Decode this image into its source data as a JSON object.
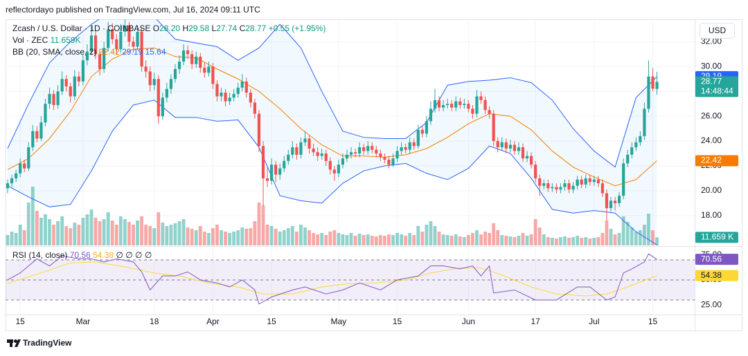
{
  "header": {
    "publisher": "reflectordayo published on TradingView.com, Jul 16, 2024 09:11 UTC",
    "brand": "TradingView",
    "currency": "USD"
  },
  "chart_data": {
    "type": "candlestick",
    "title": "Zcash / U.S. Dollar · 1D · COINBASE",
    "ohlc_legend": [
      [
        "O",
        "28.20"
      ],
      [
        "H",
        "29.58"
      ],
      [
        "L",
        "27.74"
      ],
      [
        "C",
        "28.77"
      ]
    ],
    "change": "+0.55 (+1.95%)",
    "last_price_tag": [
      "28.77",
      "14:48:44"
    ],
    "up_color": "#26a69a",
    "down_color": "#ef5350",
    "ylim": [
      15.6,
      33.8
    ],
    "yticks": [
      {
        "value": 18,
        "label": "18.00"
      },
      {
        "value": 20,
        "label": "20.00"
      },
      {
        "value": 22,
        "label": "22.00"
      },
      {
        "value": 24,
        "label": "24.00"
      },
      {
        "value": 26,
        "label": "26.00"
      },
      {
        "value": 28,
        "label": "28.00"
      },
      {
        "value": 30,
        "label": "30.00"
      },
      {
        "value": 32,
        "label": "32.00"
      }
    ],
    "grid": true,
    "xlim": [
      -0.5,
      164
    ],
    "xticks": [
      {
        "value": 3,
        "label": "15"
      },
      {
        "value": 18,
        "label": "Mar"
      },
      {
        "value": 35,
        "label": "18"
      },
      {
        "value": 49,
        "label": "Apr"
      },
      {
        "value": 63,
        "label": "15"
      },
      {
        "value": 79,
        "label": "May"
      },
      {
        "value": 93,
        "label": "15"
      },
      {
        "value": 110,
        "label": "Jun"
      },
      {
        "value": 126,
        "label": "17"
      },
      {
        "value": 140,
        "label": "Jul"
      },
      {
        "value": 154,
        "label": "15"
      }
    ],
    "candles": [
      [
        20.2,
        20.9,
        19.8,
        20.6
      ],
      [
        20.6,
        21.3,
        20.3,
        21.0
      ],
      [
        21.0,
        21.7,
        20.7,
        21.4
      ],
      [
        21.4,
        22.6,
        21.1,
        22.2
      ],
      [
        22.2,
        22.5,
        21.5,
        21.8
      ],
      [
        21.8,
        23.9,
        21.6,
        23.5
      ],
      [
        23.5,
        25.3,
        23.2,
        24.8
      ],
      [
        24.8,
        25.2,
        23.9,
        24.2
      ],
      [
        24.2,
        26.0,
        24.0,
        25.5
      ],
      [
        25.5,
        27.4,
        25.2,
        27.0
      ],
      [
        27.0,
        28.3,
        26.6,
        27.8
      ],
      [
        27.8,
        28.1,
        26.5,
        26.9
      ],
      [
        26.9,
        28.5,
        26.6,
        28.0
      ],
      [
        28.0,
        29.6,
        27.7,
        29.0
      ],
      [
        29.0,
        29.3,
        28.0,
        28.4
      ],
      [
        28.4,
        28.7,
        27.1,
        27.6
      ],
      [
        27.6,
        29.7,
        27.3,
        29.2
      ],
      [
        29.2,
        29.6,
        28.4,
        28.8
      ],
      [
        28.8,
        31.0,
        28.5,
        30.5
      ],
      [
        30.5,
        31.8,
        30.1,
        31.2
      ],
      [
        31.2,
        33.2,
        30.9,
        32.5
      ],
      [
        32.5,
        32.9,
        30.6,
        31.0
      ],
      [
        31.0,
        31.4,
        29.3,
        29.8
      ],
      [
        29.8,
        32.0,
        29.5,
        31.5
      ],
      [
        31.5,
        33.6,
        31.2,
        33.0
      ],
      [
        33.0,
        33.5,
        31.8,
        32.2
      ],
      [
        32.2,
        32.6,
        31.0,
        31.4
      ],
      [
        31.4,
        33.4,
        31.1,
        32.8
      ],
      [
        32.8,
        33.8,
        32.4,
        33.3
      ],
      [
        33.3,
        33.6,
        31.6,
        32.0
      ],
      [
        32.0,
        32.4,
        31.1,
        31.6
      ],
      [
        31.6,
        33.3,
        31.3,
        32.8
      ],
      [
        32.8,
        33.1,
        29.6,
        30.0
      ],
      [
        30.0,
        30.5,
        29.1,
        29.6
      ],
      [
        29.6,
        30.0,
        28.0,
        28.5
      ],
      [
        28.5,
        29.5,
        28.1,
        29.0
      ],
      [
        29.0,
        29.3,
        25.4,
        26.0
      ],
      [
        26.0,
        27.9,
        25.7,
        27.5
      ],
      [
        27.5,
        28.7,
        27.1,
        28.2
      ],
      [
        28.2,
        29.4,
        27.8,
        29.0
      ],
      [
        29.0,
        30.2,
        28.7,
        29.8
      ],
      [
        29.8,
        30.9,
        29.4,
        30.4
      ],
      [
        30.4,
        31.8,
        30.1,
        31.3
      ],
      [
        31.3,
        31.7,
        30.6,
        31.0
      ],
      [
        31.0,
        31.3,
        29.8,
        30.2
      ],
      [
        30.2,
        31.2,
        29.9,
        30.8
      ],
      [
        30.8,
        31.1,
        29.5,
        29.9
      ],
      [
        29.9,
        30.3,
        29.1,
        29.5
      ],
      [
        29.5,
        30.4,
        29.2,
        30.0
      ],
      [
        30.0,
        30.3,
        28.2,
        28.6
      ],
      [
        28.6,
        28.9,
        27.2,
        27.6
      ],
      [
        27.6,
        28.3,
        27.2,
        27.9
      ],
      [
        27.9,
        28.2,
        26.8,
        27.2
      ],
      [
        27.2,
        27.9,
        26.9,
        27.5
      ],
      [
        27.5,
        28.2,
        27.2,
        27.8
      ],
      [
        27.8,
        28.7,
        27.5,
        28.3
      ],
      [
        28.3,
        29.4,
        28.0,
        28.8
      ],
      [
        28.8,
        29.1,
        27.5,
        27.9
      ],
      [
        27.9,
        28.2,
        26.7,
        27.1
      ],
      [
        27.1,
        27.4,
        25.8,
        26.2
      ],
      [
        26.2,
        26.5,
        23.1,
        23.6
      ],
      [
        23.6,
        24.0,
        18.8,
        21.0
      ],
      [
        21.0,
        21.9,
        20.3,
        20.8
      ],
      [
        20.8,
        22.6,
        20.5,
        22.1
      ],
      [
        22.1,
        22.4,
        20.7,
        21.3
      ],
      [
        21.3,
        22.2,
        20.9,
        21.8
      ],
      [
        21.8,
        22.8,
        21.5,
        22.4
      ],
      [
        22.4,
        23.3,
        22.1,
        22.9
      ],
      [
        22.9,
        24.0,
        22.6,
        23.5
      ],
      [
        23.5,
        23.8,
        22.5,
        22.9
      ],
      [
        22.9,
        24.3,
        22.6,
        23.9
      ],
      [
        23.9,
        24.8,
        23.6,
        24.2
      ],
      [
        24.2,
        24.5,
        23.0,
        23.4
      ],
      [
        23.4,
        23.8,
        22.8,
        23.1
      ],
      [
        23.1,
        23.5,
        22.4,
        22.8
      ],
      [
        22.8,
        23.4,
        22.5,
        23.0
      ],
      [
        23.0,
        23.3,
        22.0,
        22.4
      ],
      [
        22.4,
        22.7,
        21.3,
        21.7
      ],
      [
        21.7,
        22.0,
        20.8,
        21.4
      ],
      [
        21.4,
        22.5,
        21.1,
        22.1
      ],
      [
        22.1,
        23.0,
        21.8,
        22.6
      ],
      [
        22.6,
        23.3,
        22.3,
        22.9
      ],
      [
        22.9,
        23.5,
        22.6,
        23.1
      ],
      [
        23.1,
        23.4,
        22.7,
        23.0
      ],
      [
        23.0,
        23.9,
        22.7,
        23.5
      ],
      [
        23.5,
        23.8,
        22.9,
        23.2
      ],
      [
        23.2,
        24.0,
        22.9,
        23.6
      ],
      [
        23.6,
        23.9,
        23.0,
        23.3
      ],
      [
        23.3,
        23.6,
        22.7,
        23.0
      ],
      [
        23.0,
        23.3,
        22.4,
        22.7
      ],
      [
        22.7,
        23.0,
        22.2,
        22.5
      ],
      [
        22.5,
        22.8,
        21.8,
        22.1
      ],
      [
        22.1,
        23.0,
        21.9,
        22.6
      ],
      [
        22.6,
        23.6,
        22.3,
        23.2
      ],
      [
        23.2,
        23.9,
        22.9,
        23.5
      ],
      [
        23.5,
        23.8,
        23.0,
        23.3
      ],
      [
        23.3,
        24.3,
        23.0,
        23.9
      ],
      [
        23.9,
        24.2,
        23.3,
        23.6
      ],
      [
        23.6,
        25.3,
        23.4,
        24.9
      ],
      [
        24.9,
        25.2,
        24.3,
        24.6
      ],
      [
        24.6,
        26.0,
        24.3,
        25.6
      ],
      [
        25.6,
        27.2,
        25.3,
        26.6
      ],
      [
        26.6,
        28.2,
        26.3,
        27.3
      ],
      [
        27.3,
        27.6,
        26.4,
        26.7
      ],
      [
        26.7,
        27.3,
        26.4,
        26.9
      ],
      [
        26.9,
        27.4,
        26.6,
        27.0
      ],
      [
        27.0,
        27.3,
        26.4,
        26.7
      ],
      [
        26.7,
        27.6,
        26.4,
        27.2
      ],
      [
        27.2,
        27.5,
        26.6,
        26.9
      ],
      [
        26.9,
        27.4,
        26.6,
        27.0
      ],
      [
        27.0,
        27.3,
        26.3,
        26.6
      ],
      [
        26.6,
        26.9,
        25.8,
        26.2
      ],
      [
        26.2,
        28.1,
        25.9,
        27.6
      ],
      [
        27.6,
        28.0,
        27.0,
        27.3
      ],
      [
        27.3,
        27.6,
        26.2,
        26.5
      ],
      [
        26.5,
        26.8,
        25.8,
        26.2
      ],
      [
        26.2,
        26.5,
        23.6,
        24.0
      ],
      [
        24.0,
        24.3,
        23.1,
        23.5
      ],
      [
        23.5,
        24.3,
        23.2,
        23.9
      ],
      [
        23.9,
        24.2,
        23.0,
        23.4
      ],
      [
        23.4,
        24.1,
        23.1,
        23.7
      ],
      [
        23.7,
        24.0,
        22.9,
        23.2
      ],
      [
        23.2,
        23.9,
        22.9,
        23.5
      ],
      [
        23.5,
        23.8,
        22.3,
        22.6
      ],
      [
        22.6,
        23.2,
        22.3,
        22.8
      ],
      [
        22.8,
        23.1,
        21.8,
        22.1
      ],
      [
        22.1,
        22.4,
        20.7,
        21.0
      ],
      [
        21.0,
        21.3,
        19.6,
        20.4
      ],
      [
        20.4,
        20.9,
        20.1,
        20.6
      ],
      [
        20.6,
        20.9,
        19.9,
        20.2
      ],
      [
        20.2,
        20.6,
        19.9,
        20.3
      ],
      [
        20.3,
        20.6,
        19.8,
        20.1
      ],
      [
        20.1,
        20.6,
        19.8,
        20.3
      ],
      [
        20.3,
        20.9,
        20.0,
        20.6
      ],
      [
        20.6,
        20.9,
        19.8,
        20.1
      ],
      [
        20.1,
        20.7,
        19.8,
        20.4
      ],
      [
        20.4,
        21.2,
        20.1,
        20.9
      ],
      [
        20.9,
        21.2,
        20.2,
        20.5
      ],
      [
        20.5,
        21.3,
        20.2,
        21.0
      ],
      [
        21.0,
        21.3,
        20.4,
        20.7
      ],
      [
        20.7,
        21.2,
        20.4,
        20.9
      ],
      [
        20.9,
        21.2,
        20.3,
        20.6
      ],
      [
        20.6,
        20.9,
        19.5,
        19.8
      ],
      [
        19.8,
        20.1,
        17.6,
        18.6
      ],
      [
        18.6,
        19.5,
        18.3,
        19.2
      ],
      [
        19.2,
        19.5,
        18.4,
        19.0
      ],
      [
        19.0,
        19.9,
        18.7,
        19.6
      ],
      [
        19.6,
        22.6,
        19.3,
        22.2
      ],
      [
        22.2,
        23.3,
        21.9,
        22.9
      ],
      [
        22.9,
        23.9,
        22.6,
        23.5
      ],
      [
        23.5,
        24.3,
        23.2,
        23.9
      ],
      [
        23.9,
        24.8,
        23.6,
        24.4
      ],
      [
        24.4,
        27.1,
        24.1,
        26.6
      ],
      [
        26.6,
        30.5,
        26.3,
        29.2
      ],
      [
        29.2,
        29.9,
        28.0,
        28.22
      ],
      [
        28.2,
        29.58,
        27.74,
        28.77
      ]
    ],
    "volume": {
      "label": "Vol · ZEC",
      "last_label": "11.659K",
      "axis_tag": "11.659 K",
      "vlim": [
        0,
        100
      ],
      "values": [
        15,
        20,
        18,
        30,
        22,
        62,
        85,
        50,
        40,
        45,
        38,
        30,
        35,
        42,
        28,
        25,
        33,
        30,
        40,
        45,
        52,
        40,
        35,
        38,
        48,
        36,
        30,
        42,
        38,
        34,
        30,
        36,
        42,
        30,
        28,
        25,
        48,
        33,
        28,
        30,
        32,
        35,
        38,
        26,
        24,
        22,
        28,
        20,
        18,
        25,
        30,
        22,
        20,
        18,
        20,
        22,
        26,
        24,
        25,
        35,
        62,
        58,
        30,
        28,
        24,
        20,
        22,
        25,
        28,
        20,
        30,
        26,
        22,
        18,
        16,
        18,
        15,
        20,
        22,
        18,
        16,
        15,
        18,
        14,
        17,
        15,
        16,
        14,
        13,
        15,
        14,
        16,
        15,
        18,
        16,
        14,
        18,
        15,
        28,
        20,
        30,
        35,
        28,
        20,
        16,
        15,
        14,
        16,
        13,
        12,
        15,
        18,
        22,
        16,
        20,
        18,
        32,
        22,
        15,
        14,
        13,
        12,
        14,
        18,
        14,
        16,
        38,
        26,
        16,
        12,
        11,
        10,
        12,
        13,
        11,
        12,
        14,
        11,
        12,
        10,
        11,
        12,
        18,
        36,
        24,
        16,
        18,
        42,
        34,
        26,
        20,
        22,
        30,
        46,
        22,
        11.659
      ]
    },
    "bb": {
      "label": "BB (20, SMA, close, 2)",
      "basis_color": "#f57c00",
      "band_color": "#2962ff",
      "fill_color": "#2196f3",
      "last_labels": [
        "22.42",
        "29.19",
        "15.64"
      ],
      "x": [
        0,
        5,
        10,
        15,
        20,
        25,
        30,
        35,
        40,
        45,
        50,
        55,
        60,
        65,
        70,
        75,
        80,
        85,
        90,
        95,
        100,
        105,
        110,
        115,
        120,
        125,
        130,
        135,
        140,
        145,
        150,
        155
      ],
      "upper": [
        23.4,
        27.0,
        30.3,
        32.0,
        33.4,
        34.5,
        35.0,
        34.0,
        32.2,
        31.9,
        31.6,
        30.5,
        31.5,
        33.4,
        31.5,
        28.0,
        24.8,
        24.3,
        24.2,
        24.2,
        25.5,
        28.5,
        28.8,
        28.9,
        29.1,
        28.7,
        27.3,
        25.0,
        23.2,
        21.9,
        27.5,
        29.19
      ],
      "basis": [
        21.7,
        22.6,
        24.2,
        26.4,
        29.2,
        30.6,
        31.4,
        31.5,
        30.8,
        30.7,
        29.8,
        29.0,
        28.0,
        26.6,
        25.0,
        23.7,
        22.8,
        22.8,
        22.7,
        22.9,
        23.4,
        24.3,
        25.4,
        26.2,
        26.0,
        24.9,
        23.2,
        21.9,
        21.1,
        20.4,
        20.9,
        22.42
      ],
      "lower": [
        20.4,
        19.5,
        18.7,
        18.9,
        21.6,
        24.8,
        26.9,
        27.3,
        25.9,
        25.9,
        25.6,
        25.7,
        23.5,
        19.6,
        19.2,
        19.0,
        20.6,
        21.6,
        22.0,
        22.2,
        21.4,
        20.9,
        21.8,
        23.6,
        23.0,
        21.0,
        18.5,
        18.2,
        18.4,
        18.2,
        16.7,
        15.64
      ]
    },
    "rsi": {
      "label": "RSI (14, close)",
      "color": "#7e57c2",
      "ma_color": "#fdd835",
      "last_labels": [
        "70.56",
        "54.38"
      ],
      "extras": [
        "∅",
        "∅",
        "∅",
        "∅"
      ],
      "ylim": [
        15.5,
        82.4
      ],
      "yticks": [
        {
          "value": 25,
          "label": "25.00"
        },
        {
          "value": 50,
          "label": "50.00"
        },
        {
          "value": 75,
          "label": "75.00"
        }
      ],
      "levels": [
        30,
        50,
        70
      ],
      "x": [
        0,
        3,
        7,
        10,
        13,
        17,
        20,
        23,
        26,
        30,
        32,
        34,
        37,
        40,
        43,
        46,
        50,
        53,
        56,
        59,
        60,
        63,
        68,
        71,
        76,
        80,
        84,
        89,
        93,
        98,
        101,
        104,
        108,
        111,
        113,
        115,
        116,
        121,
        126,
        131,
        136,
        139,
        143,
        145,
        147,
        149,
        152,
        153,
        155
      ],
      "values": [
        50,
        57,
        71,
        64,
        74,
        71,
        71,
        68,
        71,
        68,
        58,
        40,
        54,
        54,
        58,
        50,
        47,
        43,
        50,
        40,
        26,
        33,
        40,
        43,
        36,
        40,
        47,
        40,
        50,
        54,
        64,
        64,
        61,
        64,
        54,
        64,
        37,
        40,
        30,
        30,
        43,
        43,
        30,
        33,
        57,
        61,
        68,
        76,
        70.56
      ],
      "ma_x": [
        0,
        8,
        15,
        21,
        28,
        35,
        41,
        48,
        55,
        61,
        68,
        75,
        81,
        88,
        95,
        101,
        108,
        113,
        118,
        125,
        131,
        138,
        143,
        148,
        155
      ],
      "ma": [
        46.6,
        57,
        67,
        68,
        63,
        57,
        54,
        47,
        43,
        36,
        36,
        43,
        46,
        47,
        50,
        57,
        62,
        62,
        55,
        43,
        36,
        34,
        36,
        43,
        54.38
      ]
    }
  }
}
